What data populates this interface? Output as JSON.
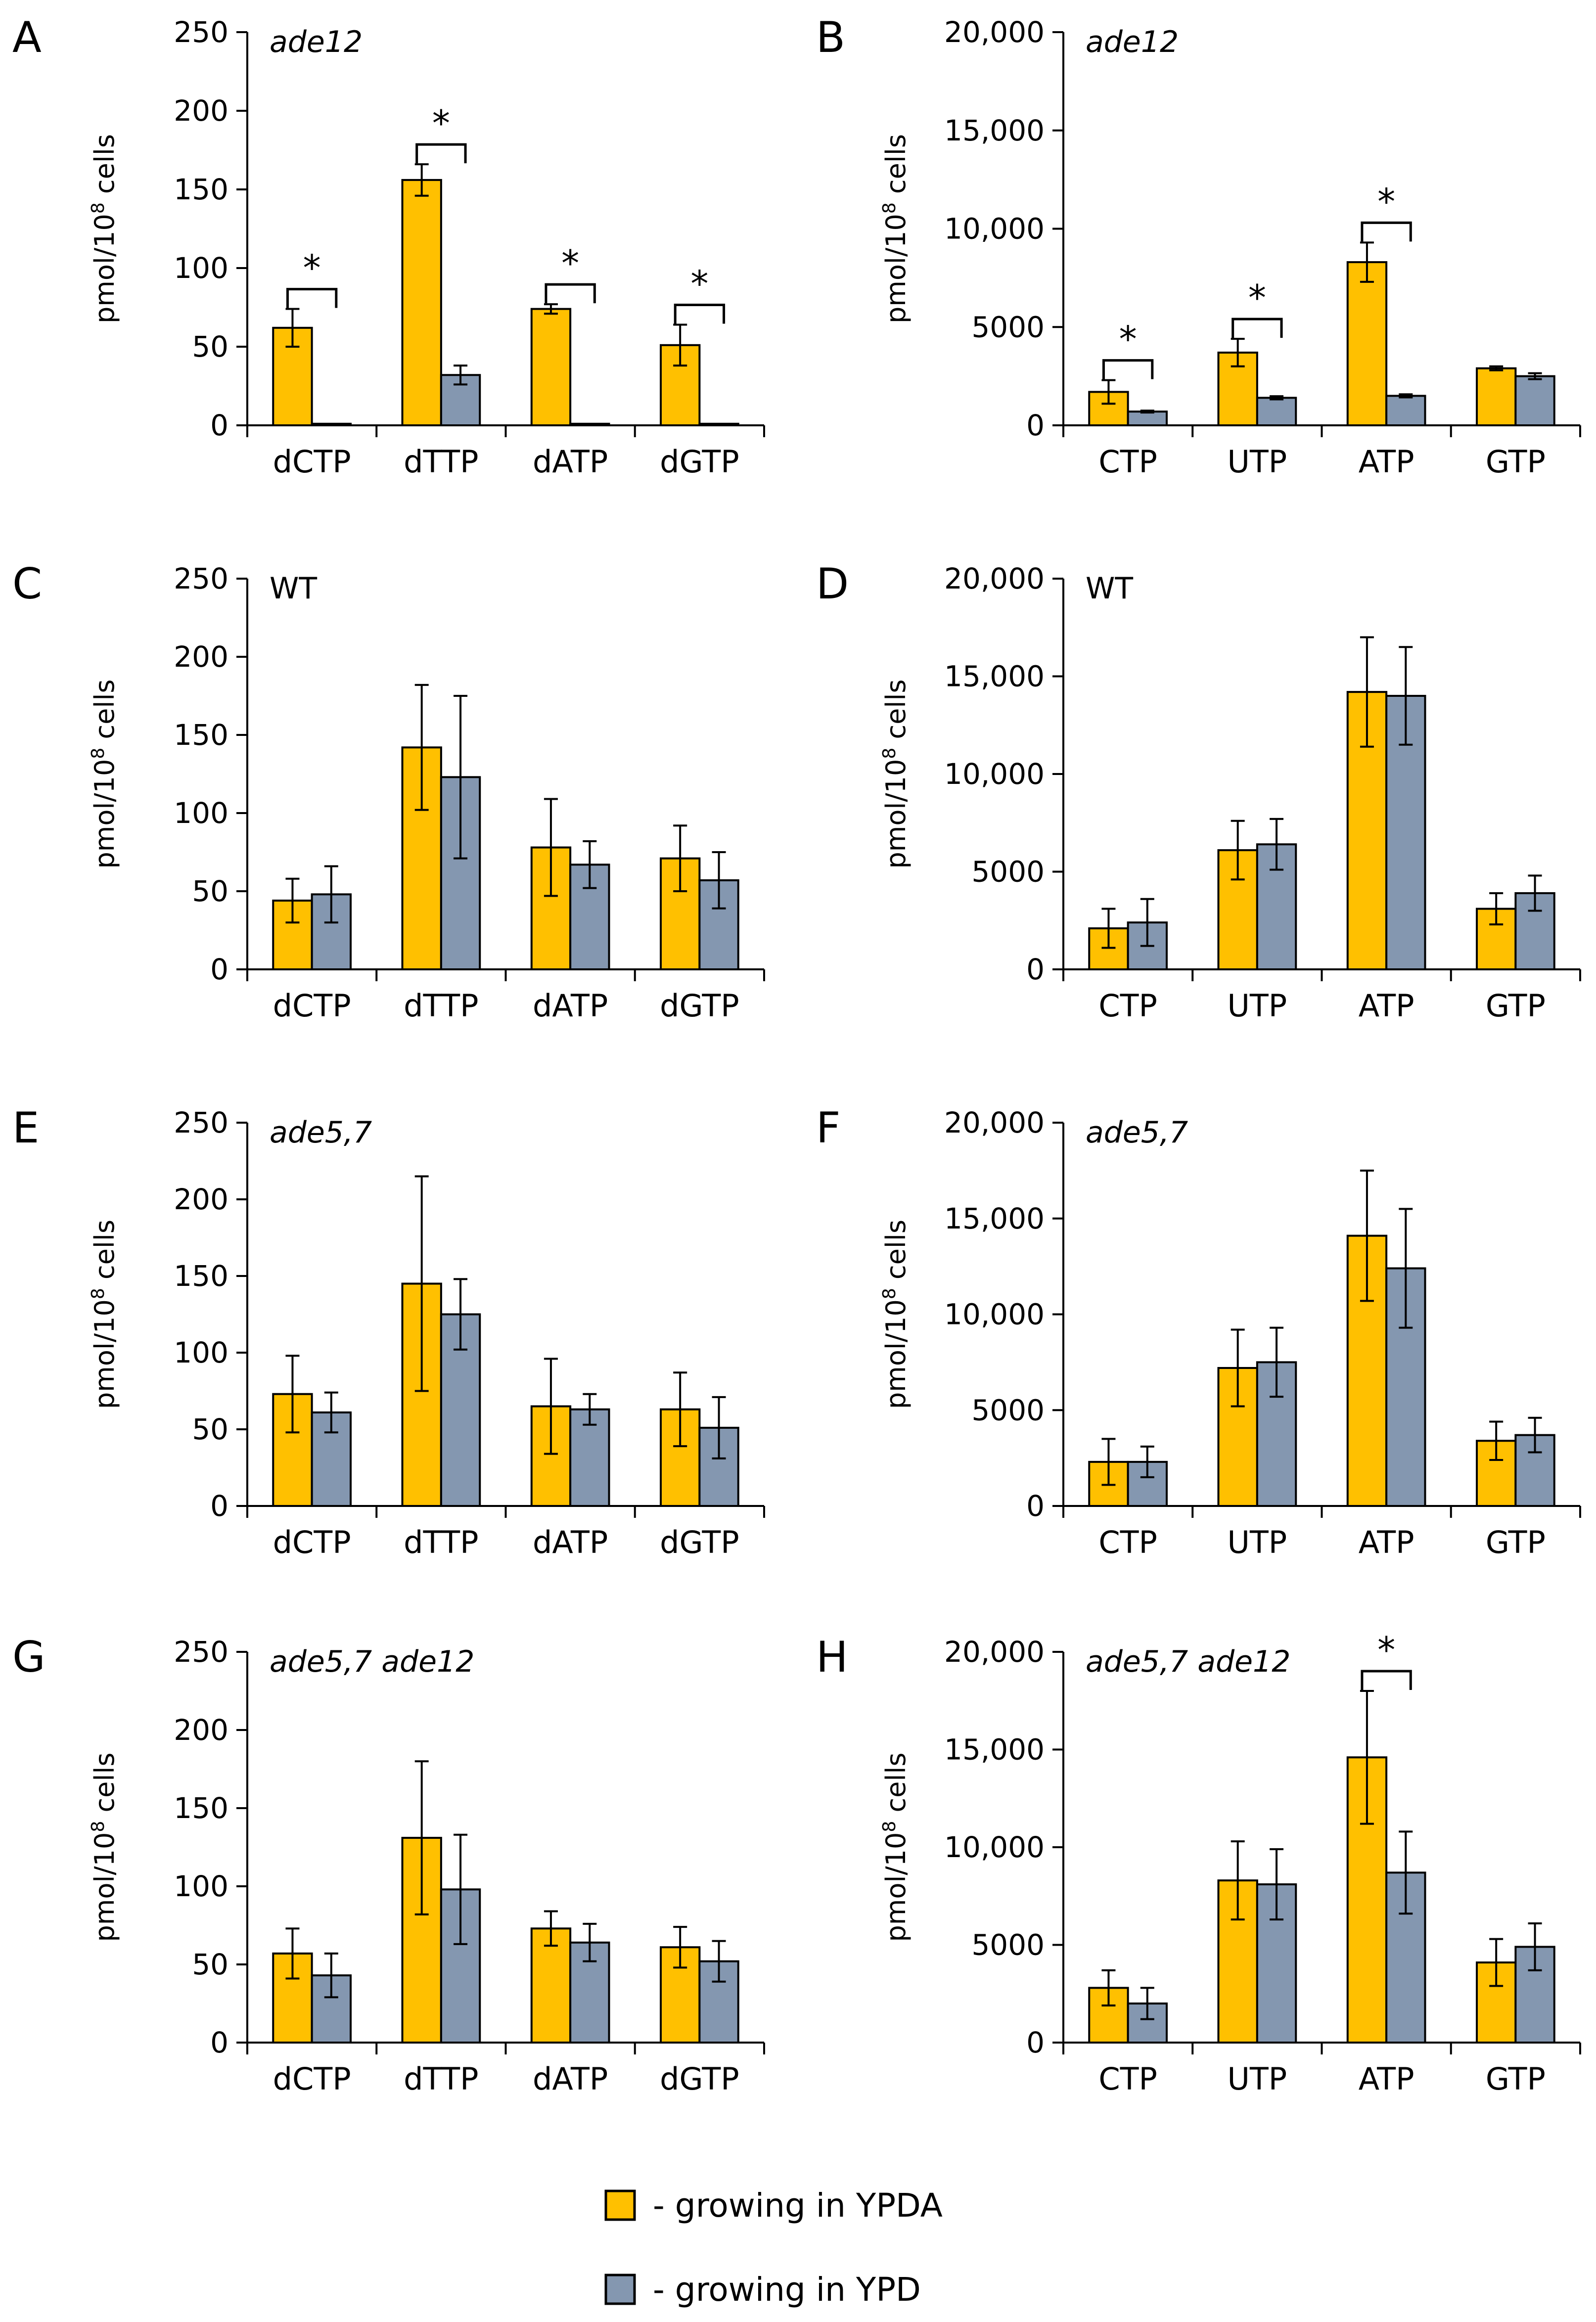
{
  "colors": {
    "ypda": "#FFC000",
    "ypd": "#8497B0",
    "edge": "#000000"
  },
  "legend": [
    {
      "name": "ypda",
      "label": "- growing in YPDA"
    },
    {
      "name": "ypd",
      "label": "- growing in YPD"
    }
  ],
  "chart_data": [
    {
      "panel": "A",
      "type": "bar",
      "strain": "ade12",
      "italic": true,
      "ylabel": "pmol/10⁸ cells",
      "ylim": [
        0,
        250
      ],
      "yticks": [
        "0",
        "50",
        "100",
        "150",
        "200",
        "250"
      ],
      "categories": [
        "dCTP",
        "dTTP",
        "dATP",
        "dGTP"
      ],
      "series": [
        {
          "name": "growing in YPDA",
          "values": [
            62,
            156,
            74,
            51
          ],
          "errors": [
            12,
            10,
            3,
            13
          ]
        },
        {
          "name": "growing in YPD",
          "values": [
            1,
            32,
            1,
            1
          ],
          "errors": [
            0,
            6,
            0,
            0
          ]
        }
      ],
      "significance": [
        "*",
        "*",
        "*",
        "*"
      ]
    },
    {
      "panel": "B",
      "type": "bar",
      "strain": "ade12",
      "italic": true,
      "ylabel": "pmol/10⁸ cells",
      "ylim": [
        0,
        20000
      ],
      "yticks": [
        "0",
        "5000",
        "10,000",
        "15,000",
        "20,000"
      ],
      "categories": [
        "CTP",
        "UTP",
        "ATP",
        "GTP"
      ],
      "series": [
        {
          "name": "growing in YPDA",
          "values": [
            1700,
            3700,
            8300,
            2900
          ],
          "errors": [
            600,
            700,
            1000,
            100
          ]
        },
        {
          "name": "growing in YPD",
          "values": [
            700,
            1400,
            1500,
            2500
          ],
          "errors": [
            50,
            80,
            80,
            150
          ]
        }
      ],
      "significance": [
        "*",
        "*",
        "*",
        ""
      ]
    },
    {
      "panel": "C",
      "type": "bar",
      "strain": "WT",
      "italic": false,
      "ylabel": "pmol/10⁸ cells",
      "ylim": [
        0,
        250
      ],
      "yticks": [
        "0",
        "50",
        "100",
        "150",
        "200",
        "250"
      ],
      "categories": [
        "dCTP",
        "dTTP",
        "dATP",
        "dGTP"
      ],
      "series": [
        {
          "name": "growing in YPDA",
          "values": [
            44,
            142,
            78,
            71
          ],
          "errors": [
            14,
            40,
            31,
            21
          ]
        },
        {
          "name": "growing in YPD",
          "values": [
            48,
            123,
            67,
            57
          ],
          "errors": [
            18,
            52,
            15,
            18
          ]
        }
      ],
      "significance": [
        "",
        "",
        "",
        ""
      ]
    },
    {
      "panel": "D",
      "type": "bar",
      "strain": "WT",
      "italic": false,
      "ylabel": "pmol/10⁸ cells",
      "ylim": [
        0,
        20000
      ],
      "yticks": [
        "0",
        "5000",
        "10,000",
        "15,000",
        "20,000"
      ],
      "categories": [
        "CTP",
        "UTP",
        "ATP",
        "GTP"
      ],
      "series": [
        {
          "name": "growing in YPDA",
          "values": [
            2100,
            6100,
            14200,
            3100
          ],
          "errors": [
            1000,
            1500,
            2800,
            800
          ]
        },
        {
          "name": "growing in YPD",
          "values": [
            2400,
            6400,
            14000,
            3900
          ],
          "errors": [
            1200,
            1300,
            2500,
            900
          ]
        }
      ],
      "significance": [
        "",
        "",
        "",
        ""
      ]
    },
    {
      "panel": "E",
      "type": "bar",
      "strain": "ade5,7",
      "italic": true,
      "ylabel": "pmol/10⁸ cells",
      "ylim": [
        0,
        250
      ],
      "yticks": [
        "0",
        "50",
        "100",
        "150",
        "200",
        "250"
      ],
      "categories": [
        "dCTP",
        "dTTP",
        "dATP",
        "dGTP"
      ],
      "series": [
        {
          "name": "growing in YPDA",
          "values": [
            73,
            145,
            65,
            63
          ],
          "errors": [
            25,
            70,
            31,
            24
          ]
        },
        {
          "name": "growing in YPD",
          "values": [
            61,
            125,
            63,
            51
          ],
          "errors": [
            13,
            23,
            10,
            20
          ]
        }
      ],
      "significance": [
        "",
        "",
        "",
        ""
      ]
    },
    {
      "panel": "F",
      "type": "bar",
      "strain": "ade5,7",
      "italic": true,
      "ylabel": "pmol/10⁸ cells",
      "ylim": [
        0,
        20000
      ],
      "yticks": [
        "0",
        "5000",
        "10,000",
        "15,000",
        "20,000"
      ],
      "categories": [
        "CTP",
        "UTP",
        "ATP",
        "GTP"
      ],
      "series": [
        {
          "name": "growing in YPDA",
          "values": [
            2300,
            7200,
            14100,
            3400
          ],
          "errors": [
            1200,
            2000,
            3400,
            1000
          ]
        },
        {
          "name": "growing in YPD",
          "values": [
            2300,
            7500,
            12400,
            3700
          ],
          "errors": [
            800,
            1800,
            3100,
            900
          ]
        }
      ],
      "significance": [
        "",
        "",
        "",
        ""
      ]
    },
    {
      "panel": "G",
      "type": "bar",
      "strain": "ade5,7 ade12",
      "italic": true,
      "ylabel": "pmol/10⁸ cells",
      "ylim": [
        0,
        250
      ],
      "yticks": [
        "0",
        "50",
        "100",
        "150",
        "200",
        "250"
      ],
      "categories": [
        "dCTP",
        "dTTP",
        "dATP",
        "dGTP"
      ],
      "series": [
        {
          "name": "growing in YPDA",
          "values": [
            57,
            131,
            73,
            61
          ],
          "errors": [
            16,
            49,
            11,
            13
          ]
        },
        {
          "name": "growing in YPD",
          "values": [
            43,
            98,
            64,
            52
          ],
          "errors": [
            14,
            35,
            12,
            13
          ]
        }
      ],
      "significance": [
        "",
        "",
        "",
        ""
      ]
    },
    {
      "panel": "H",
      "type": "bar",
      "strain": "ade5,7 ade12",
      "italic": true,
      "ylabel": "pmol/10⁸ cells",
      "ylim": [
        0,
        20000
      ],
      "yticks": [
        "0",
        "5000",
        "10,000",
        "15,000",
        "20,000"
      ],
      "categories": [
        "CTP",
        "UTP",
        "ATP",
        "GTP"
      ],
      "series": [
        {
          "name": "growing in YPDA",
          "values": [
            2800,
            8300,
            14600,
            4100
          ],
          "errors": [
            900,
            2000,
            3400,
            1200
          ]
        },
        {
          "name": "growing in YPD",
          "values": [
            2000,
            8100,
            8700,
            4900
          ],
          "errors": [
            800,
            1800,
            2100,
            1200
          ]
        }
      ],
      "significance": [
        "",
        "",
        "*",
        ""
      ]
    }
  ]
}
